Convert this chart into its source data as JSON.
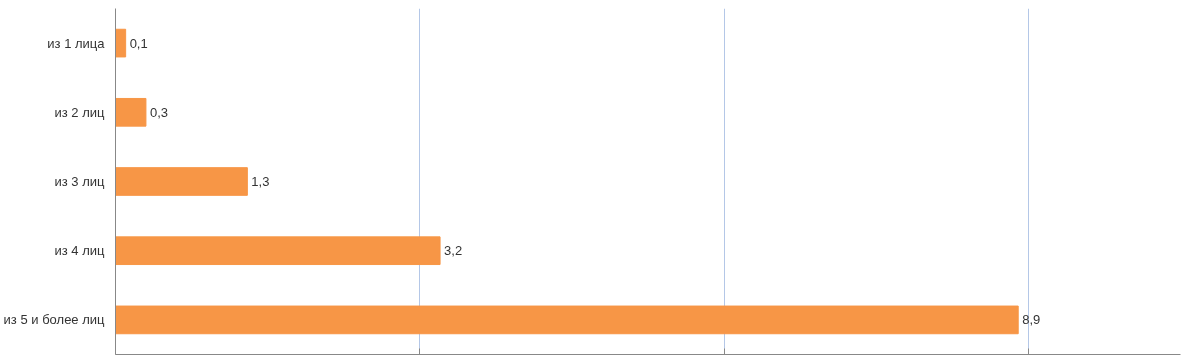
{
  "chart_data": {
    "type": "bar",
    "orientation": "horizontal",
    "categories": [
      "из 1 лица",
      "из 2 лиц",
      "из 3 лиц",
      "из 4 лиц",
      "из 5 и более лиц"
    ],
    "values": [
      0.1,
      0.3,
      1.3,
      3.2,
      8.9
    ],
    "value_labels": [
      "0,1",
      "0,3",
      "1,3",
      "3,2",
      "8,9"
    ],
    "color": "#f79646",
    "xlim": [
      0,
      10.5
    ],
    "xticks": [
      {
        "value": 0,
        "label": null
      },
      {
        "value": 3,
        "label": null
      },
      {
        "value": 6,
        "label": null
      },
      {
        "value": 9,
        "label": null
      }
    ],
    "tick_labels": "y",
    "grid": "x"
  }
}
